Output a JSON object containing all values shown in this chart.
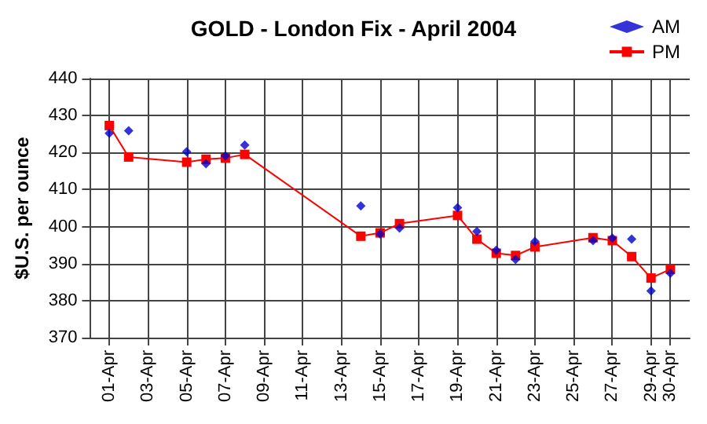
{
  "chart_data": {
    "type": "line",
    "title": "GOLD - London Fix - April 2004",
    "ylabel": "$U.S. per ounce",
    "x": [
      "2004-04-01",
      "2004-04-02",
      "2004-04-05",
      "2004-04-06",
      "2004-04-07",
      "2004-04-08",
      "2004-04-14",
      "2004-04-15",
      "2004-04-16",
      "2004-04-19",
      "2004-04-20",
      "2004-04-21",
      "2004-04-22",
      "2004-04-23",
      "2004-04-26",
      "2004-04-27",
      "2004-04-28",
      "2004-04-29",
      "2004-04-30"
    ],
    "series": [
      {
        "name": "AM",
        "type": "scatter",
        "marker": "diamond",
        "color": "#0000cc",
        "values": [
          425.2,
          425.9,
          420.2,
          417.0,
          419.1,
          422.0,
          405.6,
          398.0,
          399.6,
          405.1,
          398.7,
          393.6,
          391.1,
          396.0,
          396.2,
          396.9,
          396.6,
          382.6,
          387.4
        ]
      },
      {
        "name": "PM",
        "marker": "square",
        "line_style": "solid",
        "color": "#ff0000",
        "values": [
          427.3,
          418.8,
          417.4,
          418.2,
          418.5,
          419.5,
          397.4,
          398.3,
          400.8,
          403.0,
          396.6,
          392.8,
          392.2,
          394.5,
          397.0,
          396.2,
          391.9,
          386.1,
          388.5
        ]
      }
    ],
    "xlim": [
      "2004-03-31",
      "2004-05-01"
    ],
    "xticks": [
      {
        "value": "2004-04-01",
        "label": "01-Apr"
      },
      {
        "value": "2004-04-03",
        "label": "03-Apr"
      },
      {
        "value": "2004-04-05",
        "label": "05-Apr"
      },
      {
        "value": "2004-04-07",
        "label": "07-Apr"
      },
      {
        "value": "2004-04-09",
        "label": "09-Apr"
      },
      {
        "value": "2004-04-11",
        "label": "11-Apr"
      },
      {
        "value": "2004-04-13",
        "label": "13-Apr"
      },
      {
        "value": "2004-04-15",
        "label": "15-Apr"
      },
      {
        "value": "2004-04-17",
        "label": "17-Apr"
      },
      {
        "value": "2004-04-19",
        "label": "19-Apr"
      },
      {
        "value": "2004-04-21",
        "label": "21-Apr"
      },
      {
        "value": "2004-04-23",
        "label": "23-Apr"
      },
      {
        "value": "2004-04-25",
        "label": "25-Apr"
      },
      {
        "value": "2004-04-27",
        "label": "27-Apr"
      },
      {
        "value": "2004-04-29",
        "label": "29-Apr"
      },
      {
        "value": "2004-04-30",
        "label": "30-Apr"
      }
    ],
    "ylim": [
      370,
      440
    ],
    "yticks": [
      370,
      380,
      390,
      400,
      410,
      420,
      430,
      440
    ],
    "grid": true,
    "legend": "top right"
  }
}
